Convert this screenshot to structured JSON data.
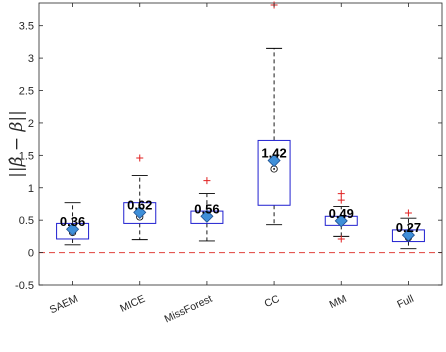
{
  "chart_data": {
    "type": "boxplot",
    "title": "",
    "xlabel": "",
    "ylabel": "||β̂ − β||",
    "ylim": [
      -0.5,
      3.85
    ],
    "yticks": [
      "-0.5",
      "0",
      "0.5",
      "1",
      "1.5",
      "2",
      "2.5",
      "3",
      "3.5"
    ],
    "ytick_values": [
      -0.5,
      0,
      0.5,
      1,
      1.5,
      2,
      2.5,
      3,
      3.5
    ],
    "reference_line": {
      "y": 0,
      "style": "dashed",
      "color": "#e0403a"
    },
    "grid": false,
    "colors": {
      "box": "#2020d0",
      "mean_marker": "#3f8fd8",
      "outlier": "#e02020",
      "whisker": "#000000"
    },
    "categories": [
      "SAEM",
      "MICE",
      "MissForest",
      "CC",
      "MM",
      "Full"
    ],
    "boxes": [
      {
        "q1": 0.21,
        "median": 0.31,
        "q3": 0.45,
        "whisker_low": 0.12,
        "whisker_high": 0.77,
        "mean": 0.36,
        "mean_label": "0.36",
        "outliers": []
      },
      {
        "q1": 0.45,
        "median": 0.55,
        "q3": 0.77,
        "whisker_low": 0.2,
        "whisker_high": 1.19,
        "mean": 0.62,
        "mean_label": "0.62",
        "outliers": [
          1.46
        ]
      },
      {
        "q1": 0.45,
        "median": 0.55,
        "q3": 0.64,
        "whisker_low": 0.18,
        "whisker_high": 0.91,
        "mean": 0.56,
        "mean_label": "0.56",
        "outliers": [
          1.11
        ]
      },
      {
        "q1": 0.73,
        "median": 1.29,
        "q3": 1.73,
        "whisker_low": 0.43,
        "whisker_high": 3.15,
        "mean": 1.42,
        "mean_label": "1.42",
        "outliers": [
          3.82
        ]
      },
      {
        "q1": 0.42,
        "median": 0.52,
        "q3": 0.56,
        "whisker_low": 0.25,
        "whisker_high": 0.71,
        "mean": 0.49,
        "mean_label": "0.49",
        "outliers": [
          0.91,
          0.81,
          0.21
        ]
      },
      {
        "q1": 0.17,
        "median": 0.23,
        "q3": 0.35,
        "whisker_low": 0.06,
        "whisker_high": 0.53,
        "mean": 0.27,
        "mean_label": "0.27",
        "outliers": [
          0.61
        ]
      }
    ]
  }
}
